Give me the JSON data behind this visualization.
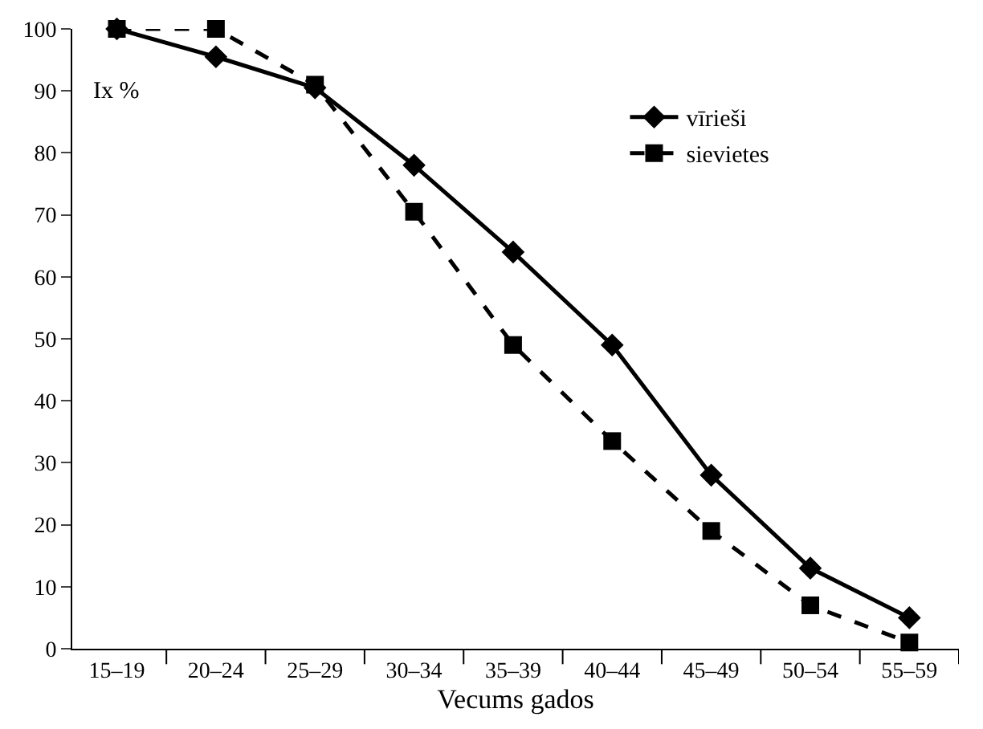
{
  "chart_data": {
    "type": "line",
    "xlabel": "Vecums gados",
    "ylabel": "Ix %",
    "categories": [
      "15–19",
      "20–24",
      "25–29",
      "30–34",
      "35–39",
      "40–44",
      "45–49",
      "50–54",
      "55–59"
    ],
    "series": [
      {
        "name": "vīrieši",
        "color": "#000000",
        "marker": "diamond",
        "line_style": "solid",
        "values": [
          100,
          95.5,
          90.5,
          78,
          64,
          49,
          28,
          13,
          5
        ]
      },
      {
        "name": "sievietes",
        "color": "#000000",
        "marker": "square",
        "line_style": "dashed",
        "values": [
          100,
          100,
          91,
          70.5,
          49,
          33.5,
          19,
          7,
          1
        ]
      }
    ],
    "ylim": [
      0,
      100
    ],
    "yticks": [
      0,
      10,
      20,
      30,
      40,
      50,
      60,
      70,
      80,
      90,
      100
    ],
    "legend": "top right"
  }
}
